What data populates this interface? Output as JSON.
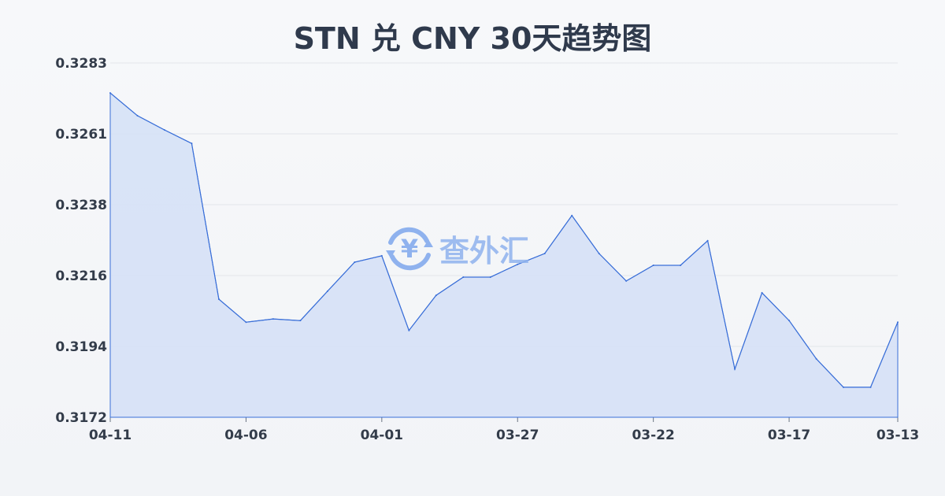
{
  "chart_data": {
    "type": "area",
    "title": "STN 兑 CNY 30天趋势图",
    "xlabel": "",
    "ylabel": "",
    "x": [
      "04-11",
      "04-10",
      "04-09",
      "04-08",
      "04-07",
      "04-06",
      "04-05",
      "04-04",
      "04-03",
      "04-02",
      "04-01",
      "03-31",
      "03-30",
      "03-29",
      "03-28",
      "03-27",
      "03-26",
      "03-25",
      "03-24",
      "03-23",
      "03-22",
      "03-21",
      "03-20",
      "03-19",
      "03-18",
      "03-17",
      "03-16",
      "03-15",
      "03-14",
      "03-13"
    ],
    "values": [
      0.32736,
      0.32665,
      0.3262,
      0.32578,
      0.3209,
      0.32018,
      0.32028,
      0.32023,
      0.32115,
      0.32206,
      0.32226,
      0.31992,
      0.32102,
      0.32159,
      0.32159,
      0.32199,
      0.32233,
      0.32352,
      0.32233,
      0.32147,
      0.32196,
      0.32196,
      0.32273,
      0.31871,
      0.3211,
      0.32023,
      0.31903,
      0.31814,
      0.31814,
      0.32018
    ],
    "x_tick_labels": [
      "04-11",
      "04-06",
      "04-01",
      "03-27",
      "03-22",
      "03-17",
      "03-13"
    ],
    "y_tick_labels": [
      "0.3283",
      "0.3261",
      "0.3238",
      "0.3216",
      "0.3194",
      "0.3172"
    ],
    "ylim": [
      0.3172,
      0.3283
    ],
    "grid": true,
    "legend": "none",
    "colors": {
      "line": "#3a6fd8",
      "fill": "#d6e1f6",
      "grid": "#e3e6ea"
    }
  },
  "watermark": {
    "text": "查外汇",
    "icon": "yen-exchange-icon"
  }
}
